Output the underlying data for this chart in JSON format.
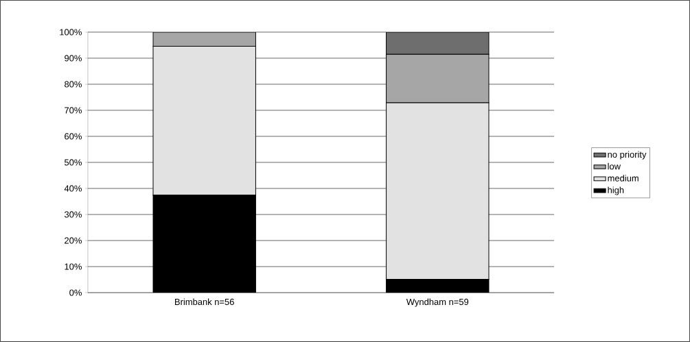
{
  "chart_data": {
    "type": "bar",
    "stacked": true,
    "categories": [
      "Brimbank n=56",
      "Wyndham n=59"
    ],
    "series": [
      {
        "name": "high",
        "color": "#000000",
        "values": [
          37.5,
          5.1
        ]
      },
      {
        "name": "medium",
        "color": "#e2e2e2",
        "values": [
          57.1,
          67.8
        ]
      },
      {
        "name": "low",
        "color": "#a6a6a6",
        "values": [
          5.4,
          18.6
        ]
      },
      {
        "name": "no priority",
        "color": "#6e6e6e",
        "values": [
          0,
          8.5
        ]
      }
    ],
    "ylim": [
      0,
      100
    ],
    "yticks": [
      {
        "value": 0,
        "label": "0%"
      },
      {
        "value": 10,
        "label": "10%"
      },
      {
        "value": 20,
        "label": "20%"
      },
      {
        "value": 30,
        "label": "30%"
      },
      {
        "value": 40,
        "label": "40%"
      },
      {
        "value": 50,
        "label": "50%"
      },
      {
        "value": 60,
        "label": "60%"
      },
      {
        "value": 70,
        "label": "70%"
      },
      {
        "value": 80,
        "label": "80%"
      },
      {
        "value": 90,
        "label": "90%"
      },
      {
        "value": 100,
        "label": "100%"
      }
    ],
    "grid": "y",
    "legend": "right"
  }
}
